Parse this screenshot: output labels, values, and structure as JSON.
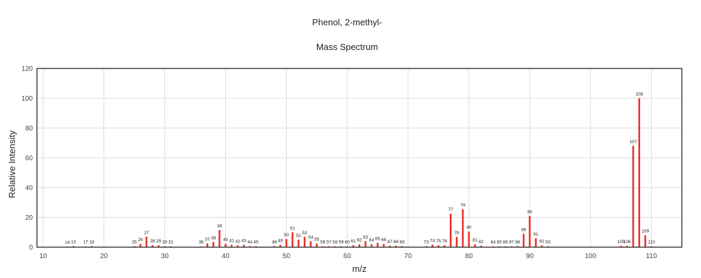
{
  "chart_data": {
    "type": "bar",
    "title": "Phenol, 2-methyl-",
    "subtitle": "Mass Spectrum",
    "xlabel": "m/z",
    "ylabel": "Relative Intensity",
    "xlim": [
      9,
      115
    ],
    "ylim": [
      0,
      120
    ],
    "xticks": [
      10,
      20,
      30,
      40,
      50,
      60,
      70,
      80,
      90,
      100,
      110
    ],
    "yticks": [
      0,
      20,
      40,
      60,
      80,
      100,
      120
    ],
    "grid": true,
    "bar_color": "#e8322a",
    "peaks": [
      {
        "mz": 14,
        "intensity": 0.5
      },
      {
        "mz": 15,
        "intensity": 0.8
      },
      {
        "mz": 17,
        "intensity": 0.6
      },
      {
        "mz": 18,
        "intensity": 0.8
      },
      {
        "mz": 25,
        "intensity": 0.7
      },
      {
        "mz": 26,
        "intensity": 2.2
      },
      {
        "mz": 27,
        "intensity": 7.0
      },
      {
        "mz": 28,
        "intensity": 1.3
      },
      {
        "mz": 29,
        "intensity": 1.3
      },
      {
        "mz": 30,
        "intensity": 0.6
      },
      {
        "mz": 31,
        "intensity": 0.6
      },
      {
        "mz": 36,
        "intensity": 0.6
      },
      {
        "mz": 37,
        "intensity": 2.5
      },
      {
        "mz": 38,
        "intensity": 3.5
      },
      {
        "mz": 39,
        "intensity": 11.5
      },
      {
        "mz": 40,
        "intensity": 2.2
      },
      {
        "mz": 41,
        "intensity": 1.5
      },
      {
        "mz": 42,
        "intensity": 1.2
      },
      {
        "mz": 43,
        "intensity": 1.7
      },
      {
        "mz": 44,
        "intensity": 0.8
      },
      {
        "mz": 45,
        "intensity": 0.7
      },
      {
        "mz": 48,
        "intensity": 0.8
      },
      {
        "mz": 49,
        "intensity": 1.5
      },
      {
        "mz": 50,
        "intensity": 5.5
      },
      {
        "mz": 51,
        "intensity": 10.0
      },
      {
        "mz": 52,
        "intensity": 5.0
      },
      {
        "mz": 53,
        "intensity": 7.0
      },
      {
        "mz": 54,
        "intensity": 4.0
      },
      {
        "mz": 55,
        "intensity": 2.5
      },
      {
        "mz": 56,
        "intensity": 0.6
      },
      {
        "mz": 57,
        "intensity": 0.6
      },
      {
        "mz": 58,
        "intensity": 0.6
      },
      {
        "mz": 59,
        "intensity": 0.6
      },
      {
        "mz": 60,
        "intensity": 0.6
      },
      {
        "mz": 61,
        "intensity": 1.3
      },
      {
        "mz": 62,
        "intensity": 2.0
      },
      {
        "mz": 63,
        "intensity": 4.0
      },
      {
        "mz": 64,
        "intensity": 2.0
      },
      {
        "mz": 65,
        "intensity": 3.0
      },
      {
        "mz": 66,
        "intensity": 2.2
      },
      {
        "mz": 67,
        "intensity": 1.0
      },
      {
        "mz": 68,
        "intensity": 1.0
      },
      {
        "mz": 69,
        "intensity": 0.8
      },
      {
        "mz": 73,
        "intensity": 0.8
      },
      {
        "mz": 74,
        "intensity": 1.7
      },
      {
        "mz": 75,
        "intensity": 1.3
      },
      {
        "mz": 76,
        "intensity": 1.3
      },
      {
        "mz": 77,
        "intensity": 22.5
      },
      {
        "mz": 78,
        "intensity": 7.0
      },
      {
        "mz": 79,
        "intensity": 25.5
      },
      {
        "mz": 80,
        "intensity": 10.5
      },
      {
        "mz": 81,
        "intensity": 2.0
      },
      {
        "mz": 82,
        "intensity": 1.0
      },
      {
        "mz": 84,
        "intensity": 0.6
      },
      {
        "mz": 85,
        "intensity": 0.6
      },
      {
        "mz": 86,
        "intensity": 0.6
      },
      {
        "mz": 87,
        "intensity": 0.6
      },
      {
        "mz": 88,
        "intensity": 0.8
      },
      {
        "mz": 89,
        "intensity": 9.0
      },
      {
        "mz": 90,
        "intensity": 21.0
      },
      {
        "mz": 91,
        "intensity": 6.0
      },
      {
        "mz": 92,
        "intensity": 1.2
      },
      {
        "mz": 93,
        "intensity": 0.6
      },
      {
        "mz": 105,
        "intensity": 1.0
      },
      {
        "mz": 106,
        "intensity": 1.0
      },
      {
        "mz": 107,
        "intensity": 68.0
      },
      {
        "mz": 108,
        "intensity": 100.0
      },
      {
        "mz": 109,
        "intensity": 8.0
      },
      {
        "mz": 110,
        "intensity": 0.6
      }
    ]
  }
}
